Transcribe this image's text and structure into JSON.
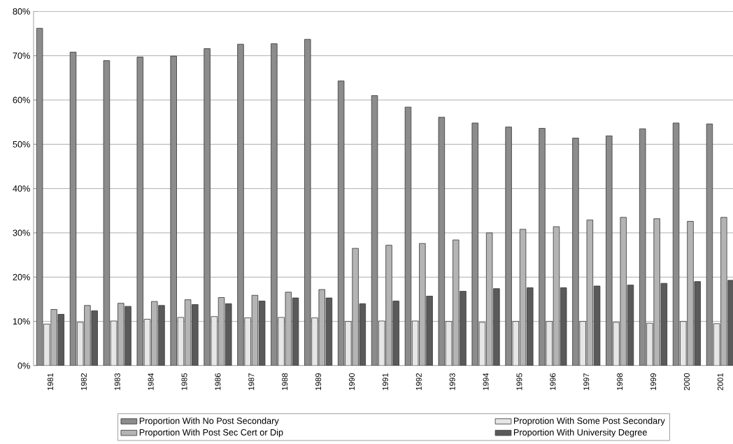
{
  "chart_data": {
    "type": "bar",
    "categories": [
      "1981",
      "1982",
      "1983",
      "1984",
      "1985",
      "1986",
      "1987",
      "1988",
      "1989",
      "1990",
      "1991",
      "1992",
      "1993",
      "1994",
      "1995",
      "1996",
      "1997",
      "1998",
      "1999",
      "2000",
      "2001"
    ],
    "series": [
      {
        "name": "Proportion With No Post Secondary",
        "color": "#8c8c8c",
        "values": [
          76.2,
          70.8,
          68.9,
          69.7,
          69.9,
          71.6,
          72.6,
          72.7,
          73.7,
          64.3,
          61.0,
          58.4,
          56.1,
          54.8,
          53.9,
          53.6,
          51.4,
          51.9,
          53.5,
          54.8,
          54.6
        ]
      },
      {
        "name": "Proprotion With Some Post Secondary",
        "color": "#e6e6e6",
        "values": [
          9.4,
          9.8,
          10.1,
          10.5,
          10.9,
          11.1,
          10.8,
          10.9,
          10.8,
          10.0,
          10.1,
          10.1,
          10.0,
          9.8,
          10.0,
          10.0,
          10.0,
          9.8,
          9.6,
          10.0,
          9.5
        ]
      },
      {
        "name": "Proportion With Post Sec Cert or Dip",
        "color": "#b4b4b4",
        "values": [
          12.7,
          13.6,
          14.1,
          14.5,
          14.9,
          15.4,
          15.9,
          16.6,
          17.2,
          26.5,
          27.2,
          27.6,
          28.4,
          30.0,
          30.8,
          31.4,
          32.9,
          33.5,
          33.2,
          32.6,
          33.5
        ]
      },
      {
        "name": "Proportion With University Degree",
        "color": "#5a5a5a",
        "values": [
          11.6,
          12.4,
          13.4,
          13.6,
          13.8,
          14.0,
          14.6,
          15.3,
          15.3,
          14.0,
          14.6,
          15.7,
          16.8,
          17.4,
          17.6,
          17.6,
          18.0,
          18.2,
          18.6,
          19.0,
          19.3
        ]
      }
    ],
    "ylim": [
      0,
      80
    ],
    "yticks": [
      {
        "value": 0,
        "label": "0%"
      },
      {
        "value": 10,
        "label": "10%"
      },
      {
        "value": 20,
        "label": "20%"
      },
      {
        "value": 30,
        "label": "30%"
      },
      {
        "value": 40,
        "label": "40%"
      },
      {
        "value": 50,
        "label": "50%"
      },
      {
        "value": 60,
        "label": "60%"
      },
      {
        "value": 70,
        "label": "70%"
      },
      {
        "value": 80,
        "label": "80%"
      }
    ],
    "grid": "y",
    "legend": "bottom"
  }
}
